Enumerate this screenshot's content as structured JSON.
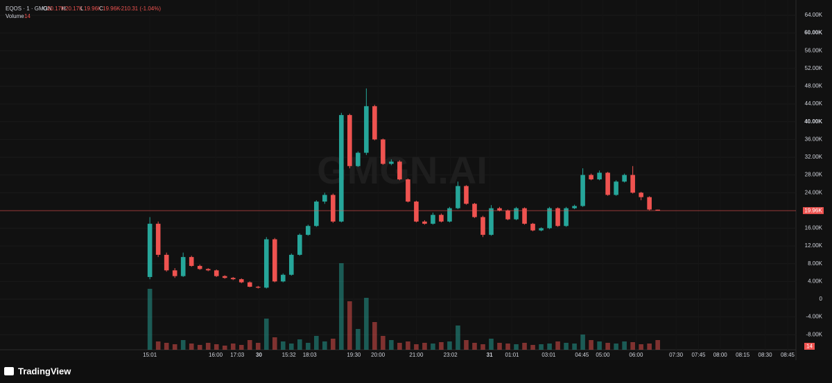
{
  "chart_data": {
    "type": "candlestick",
    "header": {
      "symbol": "EQOS · 1 · GMGN",
      "open_label": "O",
      "open": "20.17K",
      "high_label": "H",
      "high": "20.17K",
      "low_label": "L",
      "low": "19.96K",
      "close_label": "C",
      "close": "19.96K",
      "change": "-210.31 (-1.04%)",
      "volume_label": "Volume",
      "volume": "14"
    },
    "watermark": "GMGN.AI",
    "brand": "TradingView",
    "last_price_label": "19.96K",
    "up_color": "#26a69a",
    "down_color": "#ef5350",
    "x": [
      0,
      1,
      2,
      3,
      4,
      5,
      6,
      7,
      8,
      9,
      10,
      11,
      12,
      13,
      14,
      15,
      16,
      17,
      18,
      19,
      20,
      21,
      22,
      23,
      24,
      25,
      26,
      27,
      28,
      29,
      30,
      31,
      32,
      33,
      34,
      35,
      36,
      37,
      38,
      39,
      40,
      41,
      42,
      43,
      44,
      45,
      46,
      47,
      48,
      49,
      50,
      51,
      52,
      53,
      54,
      55,
      56,
      57,
      58,
      59,
      60,
      61
    ],
    "open": [
      5000,
      17000,
      10000,
      6500,
      5200,
      9500,
      7500,
      6800,
      6500,
      5200,
      4800,
      4500,
      3800,
      2800,
      2600,
      13500,
      4000,
      5500,
      10000,
      14500,
      16500,
      22000,
      23500,
      17500,
      41500,
      30000,
      33000,
      43500,
      36000,
      30500,
      31000,
      27000,
      22000,
      17500,
      17000,
      19000,
      17500,
      20500,
      25500,
      21500,
      18500,
      14500,
      20500,
      20000,
      18000,
      20500,
      17000,
      15500,
      16000,
      20500,
      16500,
      20500,
      21000,
      28000,
      27000,
      28500,
      23500,
      26500,
      28000,
      24000,
      23000,
      20170
    ],
    "high": [
      18500,
      17500,
      10500,
      7000,
      10500,
      9800,
      7800,
      7000,
      6700,
      5400,
      5000,
      4700,
      4000,
      3000,
      14000,
      13800,
      5800,
      10300,
      14800,
      16800,
      22300,
      24000,
      23800,
      42000,
      41800,
      33300,
      47500,
      43800,
      36200,
      31500,
      31300,
      27200,
      22200,
      17800,
      19500,
      19300,
      20800,
      26500,
      25700,
      21700,
      18800,
      21200,
      20800,
      20200,
      20800,
      20700,
      17200,
      16200,
      20800,
      20700,
      20800,
      21300,
      29500,
      28300,
      29000,
      28700,
      26800,
      28300,
      30000,
      24200,
      23200,
      20170
    ],
    "low": [
      4500,
      9500,
      6200,
      4800,
      5000,
      7300,
      6600,
      6300,
      5000,
      4600,
      4300,
      3600,
      2700,
      2400,
      2400,
      3800,
      3800,
      5300,
      9800,
      14300,
      16300,
      21500,
      17200,
      17300,
      29500,
      29800,
      32500,
      35800,
      30300,
      30200,
      26800,
      21800,
      17300,
      16800,
      16800,
      17300,
      17300,
      20300,
      21300,
      18300,
      14000,
      14300,
      19800,
      17800,
      17800,
      16800,
      15300,
      15300,
      15800,
      16300,
      16300,
      20300,
      20800,
      26800,
      26800,
      23300,
      23300,
      26300,
      23800,
      22300,
      20000,
      19960
    ],
    "close": [
      17000,
      10000,
      6500,
      5200,
      9500,
      7500,
      6800,
      6500,
      5200,
      4800,
      4500,
      3800,
      2800,
      2600,
      13500,
      4000,
      5500,
      10000,
      14500,
      16500,
      22000,
      23500,
      17500,
      41500,
      30000,
      33000,
      43500,
      36000,
      30500,
      31000,
      27000,
      22000,
      17500,
      17000,
      19000,
      17500,
      20500,
      25500,
      21500,
      18500,
      14500,
      20500,
      20000,
      18000,
      20500,
      17000,
      15500,
      16000,
      20500,
      16500,
      20500,
      21000,
      28000,
      27000,
      28500,
      23500,
      26500,
      28000,
      24000,
      23000,
      20200,
      19960
    ],
    "volume": [
      88,
      12,
      10,
      8,
      14,
      9,
      7,
      10,
      8,
      6,
      9,
      7,
      14,
      10,
      45,
      18,
      12,
      9,
      15,
      10,
      20,
      12,
      16,
      125,
      70,
      30,
      75,
      40,
      20,
      14,
      10,
      12,
      8,
      10,
      9,
      11,
      12,
      35,
      14,
      10,
      8,
      16,
      10,
      9,
      8,
      10,
      7,
      8,
      9,
      12,
      10,
      9,
      22,
      14,
      12,
      10,
      9,
      12,
      11,
      8,
      9,
      14
    ],
    "xlim": [
      -18,
      77.6
    ],
    "xticks": [
      {
        "value": 0,
        "label": "15:01"
      },
      {
        "value": 7.9,
        "label": "16:00"
      },
      {
        "value": 10.5,
        "label": "17:03"
      },
      {
        "value": 13.1,
        "label": "30",
        "bold": true
      },
      {
        "value": 16.7,
        "label": "15:32"
      },
      {
        "value": 19.2,
        "label": "18:03"
      },
      {
        "value": 24.5,
        "label": "19:30"
      },
      {
        "value": 27.4,
        "label": "20:00"
      },
      {
        "value": 32.0,
        "label": "21:00"
      },
      {
        "value": 36.1,
        "label": "23:02"
      },
      {
        "value": 40.8,
        "label": "31",
        "bold": true
      },
      {
        "value": 43.5,
        "label": "01:01"
      },
      {
        "value": 47.9,
        "label": "03:01"
      },
      {
        "value": 51.9,
        "label": "04:45"
      },
      {
        "value": 54.4,
        "label": "05:00"
      },
      {
        "value": 58.4,
        "label": "06:00"
      },
      {
        "value": 63.2,
        "label": "07:30"
      },
      {
        "value": 65.9,
        "label": "07:45"
      },
      {
        "value": 68.5,
        "label": "08:00"
      },
      {
        "value": 71.2,
        "label": "08:15"
      },
      {
        "value": 73.9,
        "label": "08:30"
      },
      {
        "value": 76.6,
        "label": "08:45"
      }
    ],
    "ylim": [
      -13740,
      67430
    ],
    "yticks": [
      {
        "value": 64000,
        "label": "64.00K"
      },
      {
        "value": 60000,
        "label": "60.00K",
        "bold": true
      },
      {
        "value": 56000,
        "label": "56.00K"
      },
      {
        "value": 52000,
        "label": "52.00K"
      },
      {
        "value": 48000,
        "label": "48.00K"
      },
      {
        "value": 44000,
        "label": "44.00K"
      },
      {
        "value": 40000,
        "label": "40.00K",
        "bold": true
      },
      {
        "value": 36000,
        "label": "36.00K"
      },
      {
        "value": 32000,
        "label": "32.00K"
      },
      {
        "value": 28000,
        "label": "28.00K"
      },
      {
        "value": 24000,
        "label": "24.00K"
      },
      {
        "value": 16000,
        "label": "16.00K"
      },
      {
        "value": 12000,
        "label": "12.00K"
      },
      {
        "value": 8000,
        "label": "8.00K"
      },
      {
        "value": 4000,
        "label": "4.00K"
      },
      0,
      {
        "value": -4000,
        "label": "-4.00K"
      },
      {
        "value": -8000,
        "label": "-8.00K"
      }
    ],
    "volume_lim": [
      0,
      125
    ]
  }
}
